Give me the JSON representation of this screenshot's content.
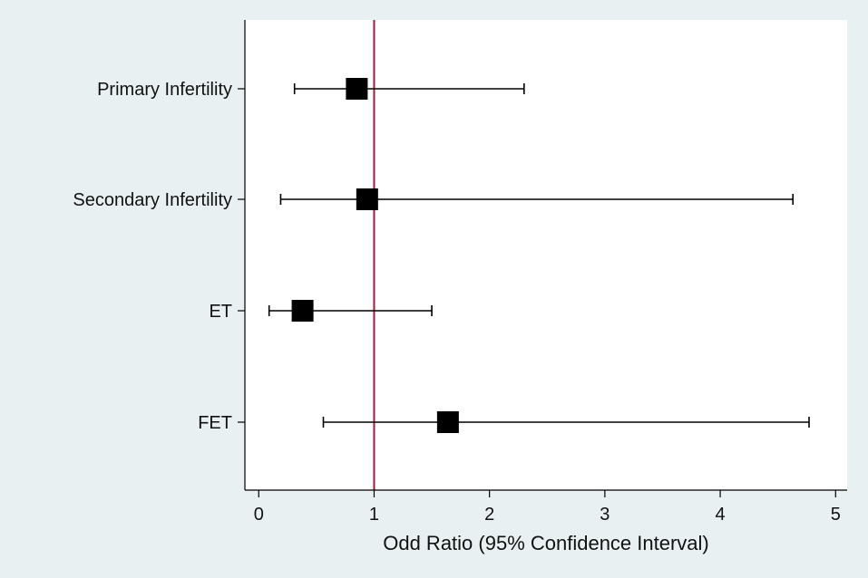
{
  "chart_data": {
    "type": "forest",
    "xlabel": "Odd Ratio (95% Confidence Interval)",
    "ylabel": "",
    "xlim": [
      -0.12,
      5.1
    ],
    "xticks": [
      0,
      1,
      2,
      3,
      4,
      5
    ],
    "reference_line": 1,
    "grid": false,
    "categories": [
      "Primary Infertility",
      "Secondary Infertility",
      "ET",
      "FET"
    ],
    "series": [
      {
        "values": [
          {
            "label": "Primary Infertility",
            "or": 0.85,
            "lower": 0.31,
            "upper": 2.3
          },
          {
            "label": "Secondary Infertility",
            "or": 0.94,
            "lower": 0.19,
            "upper": 4.63
          },
          {
            "label": "ET",
            "or": 0.38,
            "lower": 0.09,
            "upper": 1.5
          },
          {
            "label": "FET",
            "or": 1.64,
            "lower": 0.56,
            "upper": 4.77
          }
        ]
      }
    ],
    "colors": {
      "background": "#e9f0f2",
      "plot_background": "#ffffff",
      "reference_line": "#b0143c",
      "marker": "#000000"
    }
  }
}
